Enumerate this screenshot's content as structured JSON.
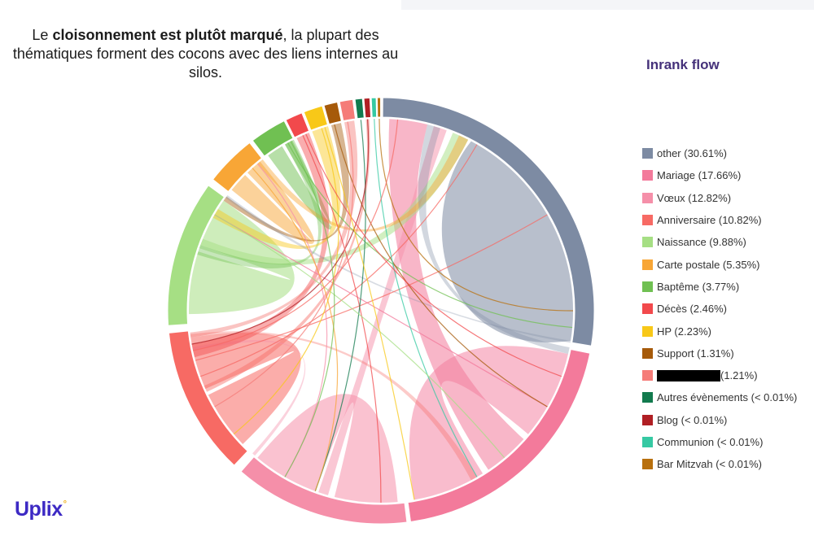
{
  "caption": {
    "part1": "Le ",
    "bold": "cloisonnement est plutôt marqué",
    "part2": ", la plupart des thématiques forment des cocons avec des liens internes au silos."
  },
  "brand": {
    "logo_text": "Uplix",
    "logo_mark": "°"
  },
  "chart_data": {
    "type": "chord",
    "title": "Inrank flow",
    "legend_position": "right",
    "groups": [
      {
        "name": "other",
        "label": "other (30.61%)",
        "value": 30.61,
        "color": "#7d8ba3"
      },
      {
        "name": "Mariage",
        "label": "Mariage (17.66%)",
        "value": 17.66,
        "color": "#f37a9b"
      },
      {
        "name": "Vœux",
        "label": "Vœux (12.82%)",
        "value": 12.82,
        "color": "#f58fa9"
      },
      {
        "name": "Anniversaire",
        "label": "Anniversaire (10.82%)",
        "value": 10.82,
        "color": "#f76a64"
      },
      {
        "name": "Naissance",
        "label": "Naissance (9.88%)",
        "value": 9.88,
        "color": "#a6df84"
      },
      {
        "name": "Carte postale",
        "label": "Carte postale (5.35%)",
        "value": 5.35,
        "color": "#f8a636"
      },
      {
        "name": "Baptême",
        "label": "Baptême (3.77%)",
        "value": 3.77,
        "color": "#70c052"
      },
      {
        "name": "Décès",
        "label": "Décès (2.46%)",
        "value": 2.46,
        "color": "#f2494c"
      },
      {
        "name": "HP",
        "label": "HP (2.23%)",
        "value": 2.23,
        "color": "#f8c818"
      },
      {
        "name": "Support",
        "label": "Support (1.31%)",
        "value": 1.31,
        "color": "#a65a0a"
      },
      {
        "name": "redacted",
        "label": "(1.21%)",
        "value": 1.21,
        "color": "#f57c78",
        "redacted": true
      },
      {
        "name": "Autres évènements",
        "label": "Autres évènements (< 0.01%)",
        "value": 0.01,
        "color": "#127a4e"
      },
      {
        "name": "Blog",
        "label": "Blog (< 0.01%)",
        "value": 0.01,
        "color": "#b01f24"
      },
      {
        "name": "Communion",
        "label": "Communion (< 0.01%)",
        "value": 0.01,
        "color": "#36c9a3"
      },
      {
        "name": "Bar Mitzvah",
        "label": "Bar Mitzvah (< 0.01%)",
        "value": 0.01,
        "color": "#b8700e"
      }
    ]
  }
}
